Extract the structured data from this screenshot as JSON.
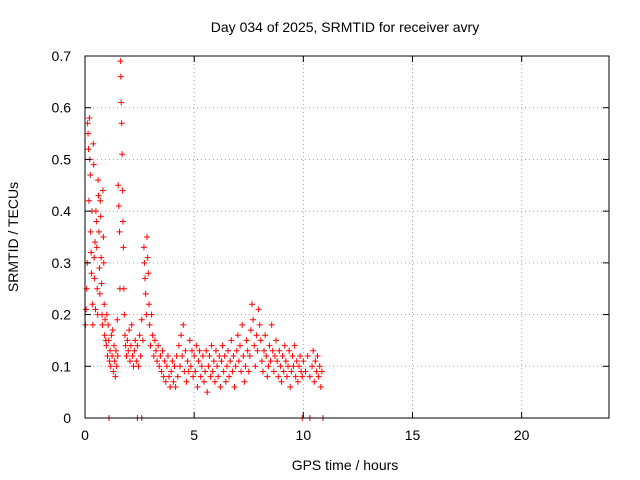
{
  "chart_data": {
    "type": "scatter",
    "title": "Day 034 of 2025, SRMTID for receiver avry",
    "xlabel": "GPS time / hours",
    "ylabel": "SRMTID / TECUs",
    "xlim": [
      0,
      24
    ],
    "ylim": [
      0,
      0.7
    ],
    "xticks": [
      0,
      5,
      10,
      15,
      20
    ],
    "yticks": [
      0,
      0.1,
      0.2,
      0.3,
      0.4,
      0.5,
      0.6,
      0.7
    ],
    "grid": true,
    "marker": "plus",
    "color": "#ff0000",
    "series": [
      {
        "name": "avry",
        "points": [
          [
            0.02,
            0.18
          ],
          [
            0.05,
            0.21
          ],
          [
            0.08,
            0.25
          ],
          [
            0.1,
            0.3
          ],
          [
            0.12,
            0.57
          ],
          [
            0.14,
            0.55
          ],
          [
            0.16,
            0.52
          ],
          [
            0.18,
            0.42
          ],
          [
            0.2,
            0.58
          ],
          [
            0.22,
            0.5
          ],
          [
            0.24,
            0.47
          ],
          [
            0.26,
            0.36
          ],
          [
            0.28,
            0.32
          ],
          [
            0.3,
            0.28
          ],
          [
            0.32,
            0.4
          ],
          [
            0.34,
            0.22
          ],
          [
            0.36,
            0.18
          ],
          [
            0.38,
            0.53
          ],
          [
            0.4,
            0.49
          ],
          [
            0.42,
            0.31
          ],
          [
            0.44,
            0.27
          ],
          [
            0.46,
            0.34
          ],
          [
            0.48,
            0.21
          ],
          [
            0.5,
            0.4
          ],
          [
            0.52,
            0.38
          ],
          [
            0.54,
            0.33
          ],
          [
            0.56,
            0.25
          ],
          [
            0.58,
            0.2
          ],
          [
            0.6,
            0.46
          ],
          [
            0.62,
            0.43
          ],
          [
            0.64,
            0.36
          ],
          [
            0.66,
            0.29
          ],
          [
            0.68,
            0.24
          ],
          [
            0.7,
            0.42
          ],
          [
            0.72,
            0.39
          ],
          [
            0.74,
            0.31
          ],
          [
            0.76,
            0.26
          ],
          [
            0.78,
            0.2
          ],
          [
            0.8,
            0.18
          ],
          [
            0.82,
            0.44
          ],
          [
            0.84,
            0.35
          ],
          [
            0.86,
            0.3
          ],
          [
            0.88,
            0.22
          ],
          [
            0.9,
            0.16
          ],
          [
            0.92,
            0.19
          ],
          [
            0.95,
            0.15
          ],
          [
            0.98,
            0.14
          ],
          [
            1.0,
            0.2
          ],
          [
            1.03,
            0.12
          ],
          [
            1.06,
            0.18
          ],
          [
            1.09,
            0.15
          ],
          [
            1.12,
            0.11
          ],
          [
            1.15,
            0.13
          ],
          [
            1.18,
            0.1
          ],
          [
            1.21,
            0.16
          ],
          [
            1.24,
            0.12
          ],
          [
            1.27,
            0.17
          ],
          [
            1.3,
            0.09
          ],
          [
            1.33,
            0.14
          ],
          [
            1.36,
            0.11
          ],
          [
            1.39,
            0.08
          ],
          [
            1.42,
            0.13
          ],
          [
            1.45,
            0.1
          ],
          [
            1.48,
            0.19
          ],
          [
            1.5,
            0.12
          ],
          [
            1.52,
            0.45
          ],
          [
            1.55,
            0.41
          ],
          [
            1.58,
            0.36
          ],
          [
            1.6,
            0.25
          ],
          [
            1.62,
            0.69
          ],
          [
            1.64,
            0.66
          ],
          [
            1.66,
            0.61
          ],
          [
            1.68,
            0.57
          ],
          [
            1.7,
            0.51
          ],
          [
            1.72,
            0.44
          ],
          [
            1.74,
            0.38
          ],
          [
            1.76,
            0.33
          ],
          [
            1.78,
            0.25
          ],
          [
            1.8,
            0.2
          ],
          [
            1.83,
            0.16
          ],
          [
            1.86,
            0.14
          ],
          [
            1.9,
            0.12
          ],
          [
            1.94,
            0.15
          ],
          [
            1.98,
            0.13
          ],
          [
            2.02,
            0.17
          ],
          [
            2.06,
            0.11
          ],
          [
            2.1,
            0.14
          ],
          [
            2.14,
            0.18
          ],
          [
            2.18,
            0.12
          ],
          [
            2.22,
            0.1
          ],
          [
            2.26,
            0.13
          ],
          [
            2.3,
            0.15
          ],
          [
            2.35,
            0.11
          ],
          [
            2.4,
            0.14
          ],
          [
            2.45,
            0.1
          ],
          [
            2.5,
            0.16
          ],
          [
            2.55,
            0.12
          ],
          [
            2.6,
            0.19
          ],
          [
            2.65,
            0.15
          ],
          [
            2.7,
            0.33
          ],
          [
            2.72,
            0.3
          ],
          [
            2.75,
            0.27
          ],
          [
            2.78,
            0.24
          ],
          [
            2.81,
            0.2
          ],
          [
            2.84,
            0.35
          ],
          [
            2.87,
            0.31
          ],
          [
            2.9,
            0.28
          ],
          [
            2.93,
            0.22
          ],
          [
            2.96,
            0.18
          ],
          [
            3.0,
            0.14
          ],
          [
            3.05,
            0.2
          ],
          [
            3.1,
            0.16
          ],
          [
            3.15,
            0.12
          ],
          [
            3.2,
            0.15
          ],
          [
            3.25,
            0.13
          ],
          [
            3.3,
            0.11
          ],
          [
            3.35,
            0.14
          ],
          [
            3.4,
            0.1
          ],
          [
            3.45,
            0.12
          ],
          [
            3.5,
            0.09
          ],
          [
            3.55,
            0.13
          ],
          [
            3.6,
            0.08
          ],
          [
            3.65,
            0.11
          ],
          [
            3.7,
            0.07
          ],
          [
            3.75,
            0.1
          ],
          [
            3.8,
            0.12
          ],
          [
            3.85,
            0.08
          ],
          [
            3.9,
            0.06
          ],
          [
            3.95,
            0.09
          ],
          [
            4.0,
            0.11
          ],
          [
            4.05,
            0.07
          ],
          [
            4.1,
            0.1
          ],
          [
            4.15,
            0.06
          ],
          [
            4.2,
            0.12
          ],
          [
            4.25,
            0.08
          ],
          [
            4.3,
            0.14
          ],
          [
            4.35,
            0.1
          ],
          [
            4.4,
            0.16
          ],
          [
            4.45,
            0.12
          ],
          [
            4.5,
            0.18
          ],
          [
            4.55,
            0.09
          ],
          [
            4.6,
            0.13
          ],
          [
            4.65,
            0.07
          ],
          [
            4.7,
            0.11
          ],
          [
            4.75,
            0.09
          ],
          [
            4.8,
            0.15
          ],
          [
            4.85,
            0.1
          ],
          [
            4.9,
            0.13
          ],
          [
            4.95,
            0.08
          ],
          [
            5.0,
            0.12
          ],
          [
            5.05,
            0.09
          ],
          [
            5.1,
            0.14
          ],
          [
            5.15,
            0.06
          ],
          [
            5.2,
            0.11
          ],
          [
            5.25,
            0.13
          ],
          [
            5.3,
            0.08
          ],
          [
            5.35,
            0.1
          ],
          [
            5.4,
            0.12
          ],
          [
            5.45,
            0.07
          ],
          [
            5.5,
            0.09
          ],
          [
            5.55,
            0.13
          ],
          [
            5.6,
            0.05
          ],
          [
            5.65,
            0.1
          ],
          [
            5.7,
            0.12
          ],
          [
            5.75,
            0.08
          ],
          [
            5.8,
            0.14
          ],
          [
            5.85,
            0.09
          ],
          [
            5.9,
            0.11
          ],
          [
            5.95,
            0.07
          ],
          [
            6.0,
            0.13
          ],
          [
            6.05,
            0.1
          ],
          [
            6.1,
            0.08
          ],
          [
            6.15,
            0.12
          ],
          [
            6.2,
            0.06
          ],
          [
            6.25,
            0.11
          ],
          [
            6.3,
            0.14
          ],
          [
            6.35,
            0.09
          ],
          [
            6.4,
            0.12
          ],
          [
            6.45,
            0.07
          ],
          [
            6.5,
            0.1
          ],
          [
            6.55,
            0.13
          ],
          [
            6.6,
            0.08
          ],
          [
            6.65,
            0.11
          ],
          [
            6.7,
            0.15
          ],
          [
            6.75,
            0.09
          ],
          [
            6.8,
            0.12
          ],
          [
            6.85,
            0.06
          ],
          [
            6.9,
            0.1
          ],
          [
            6.95,
            0.13
          ],
          [
            7.0,
            0.16
          ],
          [
            7.05,
            0.11
          ],
          [
            7.1,
            0.14
          ],
          [
            7.15,
            0.09
          ],
          [
            7.2,
            0.18
          ],
          [
            7.25,
            0.12
          ],
          [
            7.3,
            0.07
          ],
          [
            7.35,
            0.1
          ],
          [
            7.4,
            0.15
          ],
          [
            7.45,
            0.13
          ],
          [
            7.5,
            0.09
          ],
          [
            7.55,
            0.12
          ],
          [
            7.6,
            0.17
          ],
          [
            7.65,
            0.22
          ],
          [
            7.7,
            0.19
          ],
          [
            7.75,
            0.14
          ],
          [
            7.8,
            0.1
          ],
          [
            7.85,
            0.16
          ],
          [
            7.9,
            0.13
          ],
          [
            7.95,
            0.21
          ],
          [
            8.0,
            0.18
          ],
          [
            8.05,
            0.15
          ],
          [
            8.1,
            0.11
          ],
          [
            8.15,
            0.09
          ],
          [
            8.2,
            0.13
          ],
          [
            8.25,
            0.16
          ],
          [
            8.3,
            0.12
          ],
          [
            8.35,
            0.08
          ],
          [
            8.4,
            0.1
          ],
          [
            8.45,
            0.14
          ],
          [
            8.5,
            0.11
          ],
          [
            8.55,
            0.18
          ],
          [
            8.6,
            0.13
          ],
          [
            8.65,
            0.09
          ],
          [
            8.7,
            0.12
          ],
          [
            8.75,
            0.15
          ],
          [
            8.8,
            0.11
          ],
          [
            8.85,
            0.08
          ],
          [
            8.9,
            0.13
          ],
          [
            8.95,
            0.1
          ],
          [
            9.0,
            0.07
          ],
          [
            9.05,
            0.12
          ],
          [
            9.1,
            0.09
          ],
          [
            9.15,
            0.14
          ],
          [
            9.2,
            0.11
          ],
          [
            9.25,
            0.08
          ],
          [
            9.3,
            0.1
          ],
          [
            9.35,
            0.13
          ],
          [
            9.4,
            0.06
          ],
          [
            9.45,
            0.09
          ],
          [
            9.5,
            0.12
          ],
          [
            9.55,
            0.1
          ],
          [
            9.6,
            0.14
          ],
          [
            9.65,
            0.08
          ],
          [
            9.7,
            0.11
          ],
          [
            9.75,
            0.07
          ],
          [
            9.8,
            0.1
          ],
          [
            9.85,
            0.12
          ],
          [
            9.9,
            0.09
          ],
          [
            9.95,
            0.08
          ],
          [
            10.0,
            0.11
          ],
          [
            10.1,
            0.09
          ],
          [
            10.2,
            0.12
          ],
          [
            10.3,
            0.08
          ],
          [
            10.4,
            0.1
          ],
          [
            10.45,
            0.13
          ],
          [
            10.5,
            0.07
          ],
          [
            10.55,
            0.11
          ],
          [
            10.6,
            0.09
          ],
          [
            10.65,
            0.12
          ],
          [
            10.7,
            0.08
          ],
          [
            10.75,
            0.1
          ],
          [
            10.8,
            0.06
          ],
          [
            10.85,
            0.09
          ],
          [
            1.1,
            0.0
          ],
          [
            2.4,
            0.0
          ],
          [
            2.6,
            0.0
          ],
          [
            9.95,
            0.0
          ],
          [
            10.3,
            0.0
          ],
          [
            10.9,
            0.0
          ]
        ]
      }
    ]
  }
}
